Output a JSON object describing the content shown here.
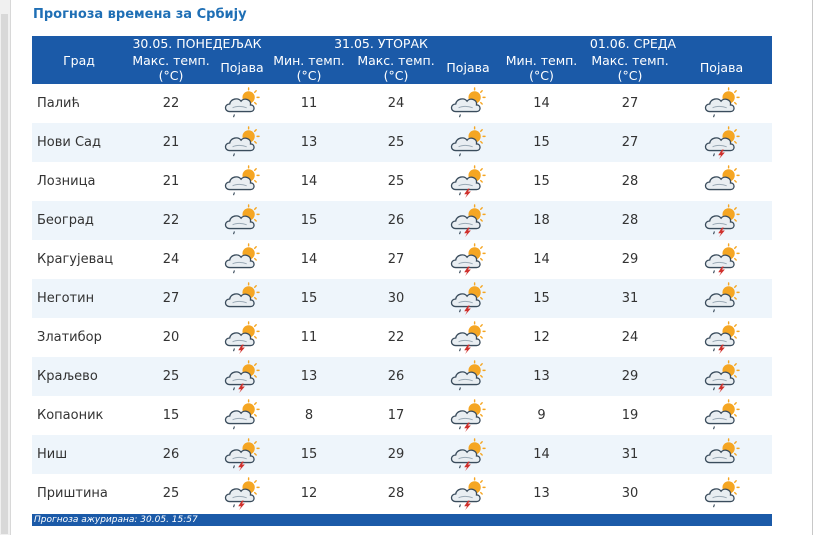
{
  "page": {
    "title": "Прогноза времена за Србију"
  },
  "table": {
    "city_header": "Град",
    "days": [
      {
        "date": "30.05. ПОНЕДЕЉАК",
        "col1": "Макс. темп. (°C)",
        "phen": "Појава"
      },
      {
        "date": "31.05. УТОРАК",
        "col1": "Мин. темп. (°C)",
        "col2": "Макс. темп. (°C)",
        "phen": "Појава"
      },
      {
        "date": "01.06. СРЕДА",
        "col1": "Мин. темп. (°C)",
        "col2": "Макс. темп. (°C)",
        "phen": "Појава"
      }
    ],
    "rows": [
      {
        "city": "Палић",
        "d1_max": "22",
        "d1_icon": "partly-cloudy-rain",
        "d2_min": "11",
        "d2_max": "24",
        "d2_icon": "partly-cloudy-rain",
        "d3_min": "14",
        "d3_max": "27",
        "d3_icon": "partly-cloudy-rain"
      },
      {
        "city": "Нови Сад",
        "d1_max": "21",
        "d1_icon": "partly-cloudy-rain",
        "d2_min": "13",
        "d2_max": "25",
        "d2_icon": "partly-cloudy-rain",
        "d3_min": "15",
        "d3_max": "27",
        "d3_icon": "partly-cloudy-thunderstorm"
      },
      {
        "city": "Лозница",
        "d1_max": "21",
        "d1_icon": "partly-cloudy-rain",
        "d2_min": "14",
        "d2_max": "25",
        "d2_icon": "partly-cloudy-thunderstorm",
        "d3_min": "15",
        "d3_max": "28",
        "d3_icon": "partly-cloudy"
      },
      {
        "city": "Београд",
        "d1_max": "22",
        "d1_icon": "partly-cloudy-rain",
        "d2_min": "15",
        "d2_max": "26",
        "d2_icon": "partly-cloudy-thunderstorm",
        "d3_min": "18",
        "d3_max": "28",
        "d3_icon": "partly-cloudy-thunderstorm"
      },
      {
        "city": "Крагујевац",
        "d1_max": "24",
        "d1_icon": "partly-cloudy-rain",
        "d2_min": "14",
        "d2_max": "27",
        "d2_icon": "partly-cloudy-thunderstorm",
        "d3_min": "14",
        "d3_max": "29",
        "d3_icon": "partly-cloudy-thunderstorm"
      },
      {
        "city": "Неготин",
        "d1_max": "27",
        "d1_icon": "partly-cloudy",
        "d2_min": "15",
        "d2_max": "30",
        "d2_icon": "partly-cloudy-thunderstorm",
        "d3_min": "15",
        "d3_max": "31",
        "d3_icon": "partly-cloudy-rain"
      },
      {
        "city": "Златибор",
        "d1_max": "20",
        "d1_icon": "partly-cloudy-thunderstorm",
        "d2_min": "11",
        "d2_max": "22",
        "d2_icon": "partly-cloudy-thunderstorm",
        "d3_min": "12",
        "d3_max": "24",
        "d3_icon": "partly-cloudy-thunderstorm"
      },
      {
        "city": "Краљево",
        "d1_max": "25",
        "d1_icon": "partly-cloudy-thunderstorm",
        "d2_min": "13",
        "d2_max": "26",
        "d2_icon": "partly-cloudy-rain",
        "d3_min": "13",
        "d3_max": "29",
        "d3_icon": "partly-cloudy-thunderstorm"
      },
      {
        "city": "Копаоник",
        "d1_max": "15",
        "d1_icon": "partly-cloudy-rain",
        "d2_min": "8",
        "d2_max": "17",
        "d2_icon": "partly-cloudy-thunderstorm",
        "d3_min": "9",
        "d3_max": "19",
        "d3_icon": "partly-cloudy-rain"
      },
      {
        "city": "Ниш",
        "d1_max": "26",
        "d1_icon": "partly-cloudy-thunderstorm",
        "d2_min": "15",
        "d2_max": "29",
        "d2_icon": "partly-cloudy-thunderstorm",
        "d3_min": "14",
        "d3_max": "31",
        "d3_icon": "partly-cloudy"
      },
      {
        "city": "Приштина",
        "d1_max": "25",
        "d1_icon": "partly-cloudy-thunderstorm",
        "d2_min": "12",
        "d2_max": "28",
        "d2_icon": "partly-cloudy-thunderstorm",
        "d3_min": "13",
        "d3_max": "30",
        "d3_icon": "partly-cloudy-rain"
      }
    ]
  },
  "footer": {
    "updated": "Прогноза ажурирана:  30.05.  15:57"
  },
  "colors": {
    "header_bg": "#1b5aa8",
    "title": "#1f6fb5",
    "row_alt": "#eef5fb",
    "sun": "#f5a623",
    "lightning": "#d0312d"
  }
}
